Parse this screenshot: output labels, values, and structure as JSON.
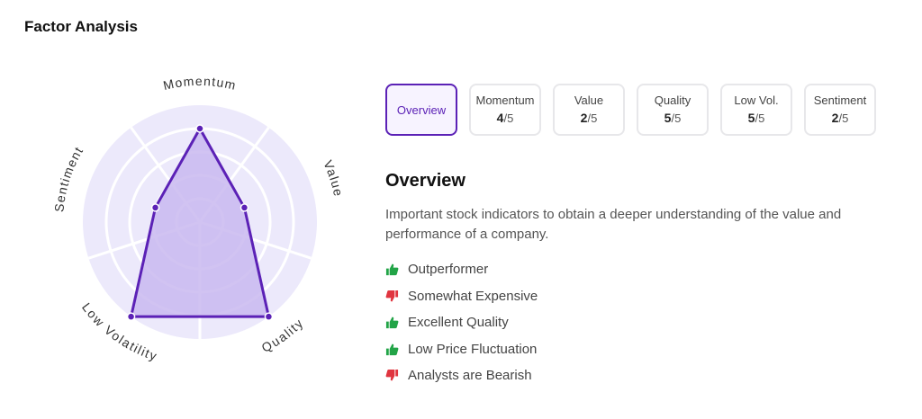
{
  "header": {
    "title": "Factor Analysis"
  },
  "radar": {
    "axes": [
      "Momentum",
      "Value",
      "Quality",
      "Low Volatility",
      "Sentiment"
    ],
    "scores": [
      4,
      2,
      5,
      5,
      2
    ],
    "max": 5,
    "colors": {
      "disc": "#ece9fb",
      "grid": "#ffffff",
      "fill": "#c9b8f0",
      "stroke": "#5b21b6"
    }
  },
  "tabs": [
    {
      "label": "Overview",
      "active": true
    },
    {
      "label": "Momentum",
      "score": "4",
      "of": "/5"
    },
    {
      "label": "Value",
      "score": "2",
      "of": "/5"
    },
    {
      "label": "Quality",
      "score": "5",
      "of": "/5"
    },
    {
      "label": "Low Vol.",
      "score": "5",
      "of": "/5"
    },
    {
      "label": "Sentiment",
      "score": "2",
      "of": "/5"
    }
  ],
  "overview": {
    "heading": "Overview",
    "description": "Important stock indicators to obtain a deeper understanding of the value and performance of a company.",
    "points": [
      {
        "text": "Outperformer",
        "sentiment": "positive",
        "icon": "thumbs-up-icon"
      },
      {
        "text": "Somewhat Expensive",
        "sentiment": "negative",
        "icon": "thumbs-down-icon"
      },
      {
        "text": "Excellent Quality",
        "sentiment": "positive",
        "icon": "thumbs-up-icon"
      },
      {
        "text": "Low Price Fluctuation",
        "sentiment": "positive",
        "icon": "thumbs-up-icon"
      },
      {
        "text": "Analysts are Bearish",
        "sentiment": "negative",
        "icon": "thumbs-down-icon"
      }
    ],
    "colors": {
      "positive": "#22a447",
      "negative": "#e0353f"
    }
  }
}
